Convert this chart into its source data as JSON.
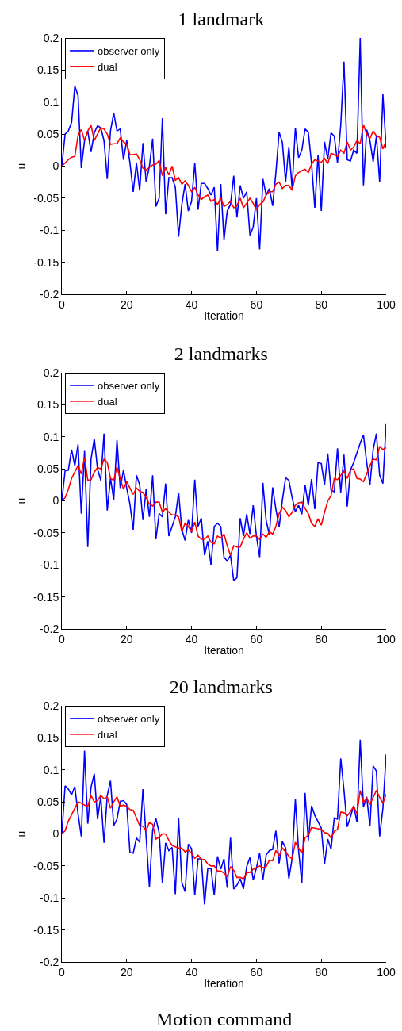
{
  "chart_data": [
    {
      "type": "line",
      "title": "1 landmark",
      "xlabel": "Iteration",
      "ylabel": "u",
      "xlim": [
        0,
        100
      ],
      "xticks": [
        0,
        20,
        40,
        60,
        80,
        100
      ],
      "ylim": [
        -0.2,
        0.2
      ],
      "yticks": [
        -0.2,
        -0.15,
        -0.1,
        -0.05,
        0,
        0.05,
        0.1,
        0.15,
        0.2
      ],
      "grid": false,
      "legend": "top left",
      "marker": "none",
      "line_style": "solid",
      "x": [
        0,
        1,
        2,
        3,
        4,
        5,
        6,
        7,
        8,
        9,
        10,
        11,
        12,
        13,
        14,
        15,
        16,
        17,
        18,
        19,
        20,
        21,
        22,
        23,
        24,
        25,
        26,
        27,
        28,
        29,
        30,
        31,
        32,
        33,
        34,
        35,
        36,
        37,
        38,
        39,
        40,
        41,
        42,
        43,
        44,
        45,
        46,
        47,
        48,
        49,
        50,
        51,
        52,
        53,
        54,
        55,
        56,
        57,
        58,
        59,
        60,
        61,
        62,
        63,
        64,
        65,
        66,
        67,
        68,
        69,
        70,
        71,
        72,
        73,
        74,
        75,
        76,
        77,
        78,
        79,
        80,
        81,
        82,
        83,
        84,
        85,
        86,
        87,
        88,
        89,
        90,
        91,
        92,
        93,
        94,
        95,
        96,
        97,
        98,
        99,
        100
      ],
      "series": [
        {
          "name": "observer only",
          "color": "#0000ff",
          "values": [
            0,
            0.05,
            0.055,
            0.068,
            0.125,
            0.11,
            -0.003,
            0.04,
            0.055,
            0.022,
            0.052,
            0.063,
            0.06,
            0.04,
            -0.02,
            0.055,
            0.083,
            0.055,
            0.058,
            0.01,
            0.04,
            0.005,
            -0.04,
            0.005,
            -0.038,
            0.036,
            -0.025,
            0,
            0.043,
            -0.063,
            -0.05,
            0.075,
            -0.075,
            -0.018,
            -0.018,
            -0.033,
            -0.11,
            -0.06,
            -0.028,
            -0.07,
            -0.055,
            0.005,
            -0.068,
            -0.027,
            -0.027,
            -0.035,
            -0.045,
            -0.033,
            -0.133,
            -0.028,
            -0.115,
            -0.07,
            -0.06,
            -0.015,
            -0.08,
            -0.03,
            -0.05,
            -0.04,
            -0.108,
            -0.095,
            -0.05,
            -0.13,
            -0.02,
            -0.045,
            -0.035,
            -0.062,
            -0.01,
            0.053,
            0.037,
            -0.025,
            0.03,
            -0.035,
            0.06,
            0.013,
            0.025,
            0.058,
            0.053,
            0.004,
            -0.065,
            0.018,
            -0.07,
            0.038,
            0.011,
            0.052,
            0.047,
            0.005,
            0.064,
            0.163,
            0.01,
            0.008,
            0.025,
            0.02,
            0.2,
            -0.03,
            0.057,
            0.04,
            0.007,
            0.047,
            -0.025,
            0.112,
            0.028
          ]
        },
        {
          "name": "dual",
          "color": "#ff0000",
          "values": [
            0,
            0.005,
            0.01,
            0.014,
            0.015,
            0.048,
            0.057,
            0.04,
            0.055,
            0.064,
            0.04,
            0.05,
            0.06,
            0.058,
            0.05,
            0.034,
            0.035,
            0.035,
            0.044,
            0.038,
            0.034,
            0.018,
            0.018,
            0.019,
            0.01,
            -0.003,
            -0.006,
            -0.002,
            0.002,
            0.003,
            0.009,
            -0.015,
            -0.002,
            -0.014,
            0,
            -0.022,
            -0.018,
            -0.028,
            -0.023,
            -0.03,
            -0.04,
            -0.033,
            -0.045,
            -0.052,
            -0.048,
            -0.045,
            -0.055,
            -0.052,
            -0.06,
            -0.05,
            -0.063,
            -0.06,
            -0.055,
            -0.065,
            -0.062,
            -0.05,
            -0.065,
            -0.058,
            -0.05,
            -0.058,
            -0.068,
            -0.06,
            -0.056,
            -0.045,
            -0.04,
            -0.04,
            -0.028,
            -0.025,
            -0.035,
            -0.03,
            -0.03,
            -0.038,
            -0.015,
            -0.01,
            -0.007,
            -0.005,
            -0.01,
            0.003,
            0.01,
            0.008,
            0.006,
            0.012,
            0.004,
            0.02,
            0.018,
            0.015,
            0.025,
            0.02,
            0.038,
            0.025,
            0.03,
            0.04,
            0.035,
            0.065,
            0.05,
            0.043,
            0.055,
            0.047,
            0.045,
            0.027,
            0.04
          ]
        }
      ]
    },
    {
      "type": "line",
      "title": "2 landmarks",
      "xlabel": "Iteration",
      "ylabel": "u",
      "xlim": [
        0,
        100
      ],
      "xticks": [
        0,
        20,
        40,
        60,
        80,
        100
      ],
      "ylim": [
        -0.2,
        0.2
      ],
      "yticks": [
        -0.2,
        -0.15,
        -0.1,
        -0.05,
        0,
        0.05,
        0.1,
        0.15,
        0.2
      ],
      "grid": false,
      "legend": "top left",
      "marker": "none",
      "line_style": "solid",
      "x": [
        0,
        1,
        2,
        3,
        4,
        5,
        6,
        7,
        8,
        9,
        10,
        11,
        12,
        13,
        14,
        15,
        16,
        17,
        18,
        19,
        20,
        21,
        22,
        23,
        24,
        25,
        26,
        27,
        28,
        29,
        30,
        31,
        32,
        33,
        34,
        35,
        36,
        37,
        38,
        39,
        40,
        41,
        42,
        43,
        44,
        45,
        46,
        47,
        48,
        49,
        50,
        51,
        52,
        53,
        54,
        55,
        56,
        57,
        58,
        59,
        60,
        61,
        62,
        63,
        64,
        65,
        66,
        67,
        68,
        69,
        70,
        71,
        72,
        73,
        74,
        75,
        76,
        77,
        78,
        79,
        80,
        81,
        82,
        83,
        84,
        85,
        86,
        87,
        88,
        89,
        90,
        91,
        92,
        93,
        94,
        95,
        96,
        97,
        98,
        99,
        100
      ],
      "series": [
        {
          "name": "observer only",
          "color": "#0000ff",
          "values": [
            0,
            0.047,
            0.048,
            0.08,
            0.055,
            0.088,
            -0.02,
            0.078,
            -0.072,
            0.065,
            0.097,
            0.05,
            0.032,
            0.105,
            -0.015,
            0.035,
            0.002,
            0.095,
            0.02,
            0.048,
            0.02,
            -0.005,
            -0.045,
            0.04,
            0.025,
            -0.03,
            0.018,
            -0.025,
            0.04,
            -0.06,
            -0.02,
            -0.025,
            0.027,
            -0.055,
            -0.04,
            -0.025,
            0.013,
            -0.045,
            -0.062,
            -0.03,
            -0.05,
            0.033,
            -0.04,
            -0.027,
            -0.085,
            -0.063,
            -0.1,
            -0.04,
            -0.035,
            -0.04,
            -0.088,
            -0.094,
            -0.085,
            -0.125,
            -0.12,
            -0.027,
            -0.055,
            -0.021,
            -0.052,
            -0.007,
            -0.055,
            -0.088,
            0.028,
            -0.031,
            -0.053,
            0.021,
            -0.013,
            -0.041,
            0.001,
            0.036,
            0.032,
            0.005,
            -0.017,
            -0.007,
            -0.021,
            0.025,
            -0.007,
            0.034,
            -0.013,
            0.06,
            0.058,
            0.025,
            0.074,
            0.017,
            0.014,
            0.082,
            0.013,
            0.072,
            -0.009,
            0.048,
            0.06,
            0.075,
            0.09,
            0.103,
            0.06,
            0.025,
            0.08,
            0.105,
            0.04,
            0.027,
            0.121
          ]
        },
        {
          "name": "dual",
          "color": "#ff0000",
          "values": [
            0,
            0.005,
            0.018,
            0.035,
            0.045,
            0.055,
            0.042,
            0.068,
            0.032,
            0.033,
            0.045,
            0.052,
            0.05,
            0.065,
            0.06,
            0.035,
            0.032,
            0.053,
            0.035,
            0.018,
            0.03,
            0.02,
            0.01,
            0.02,
            0.015,
            0.013,
            0.005,
            -0.005,
            -0.008,
            -0.002,
            -0.002,
            -0.018,
            -0.012,
            -0.018,
            -0.022,
            -0.022,
            -0.025,
            -0.048,
            -0.035,
            -0.04,
            -0.048,
            -0.033,
            -0.055,
            -0.06,
            -0.06,
            -0.055,
            -0.065,
            -0.067,
            -0.055,
            -0.058,
            -0.052,
            -0.07,
            -0.085,
            -0.07,
            -0.072,
            -0.072,
            -0.06,
            -0.05,
            -0.058,
            -0.055,
            -0.055,
            -0.06,
            -0.052,
            -0.057,
            -0.048,
            -0.052,
            -0.04,
            -0.02,
            -0.01,
            -0.015,
            -0.025,
            -0.018,
            -0.007,
            -0.003,
            -0.002,
            -0.012,
            -0.02,
            -0.035,
            -0.04,
            -0.028,
            -0.038,
            -0.018,
            0,
            0.008,
            0.035,
            0.033,
            0.04,
            0.047,
            0.035,
            0.048,
            0.05,
            0.035,
            0.034,
            0.03,
            0.042,
            0.055,
            0.065,
            0.064,
            0.085,
            0.08,
            0.083
          ]
        }
      ]
    },
    {
      "type": "line",
      "title": "20 landmarks",
      "xlabel": "Iteration",
      "ylabel": "u",
      "xlim": [
        0,
        100
      ],
      "xticks": [
        0,
        20,
        40,
        60,
        80,
        100
      ],
      "ylim": [
        -0.2,
        0.2
      ],
      "yticks": [
        -0.2,
        -0.15,
        -0.1,
        -0.05,
        0,
        0.05,
        0.1,
        0.15,
        0.2
      ],
      "grid": false,
      "legend": "top left",
      "marker": "none",
      "line_style": "solid",
      "annotations": [
        "Motion command"
      ],
      "x": [
        0,
        1,
        2,
        3,
        4,
        5,
        6,
        7,
        8,
        9,
        10,
        11,
        12,
        13,
        14,
        15,
        16,
        17,
        18,
        19,
        20,
        21,
        22,
        23,
        24,
        25,
        26,
        27,
        28,
        29,
        30,
        31,
        32,
        33,
        34,
        35,
        36,
        37,
        38,
        39,
        40,
        41,
        42,
        43,
        44,
        45,
        46,
        47,
        48,
        49,
        50,
        51,
        52,
        53,
        54,
        55,
        56,
        57,
        58,
        59,
        60,
        61,
        62,
        63,
        64,
        65,
        66,
        67,
        68,
        69,
        70,
        71,
        72,
        73,
        74,
        75,
        76,
        77,
        78,
        79,
        80,
        81,
        82,
        83,
        84,
        85,
        86,
        87,
        88,
        89,
        90,
        91,
        92,
        93,
        94,
        95,
        96,
        97,
        98,
        99,
        100
      ],
      "series": [
        {
          "name": "observer only",
          "color": "#0000ff",
          "values": [
            0,
            0.075,
            0.07,
            0.061,
            0.074,
            0.031,
            -0.004,
            0.13,
            0.016,
            0.073,
            0.094,
            0.023,
            0.058,
            -0.014,
            0.06,
            0.083,
            0.013,
            0.023,
            0.051,
            0.052,
            0.046,
            -0.029,
            -0.03,
            -0.006,
            -0.013,
            0.07,
            -0.006,
            -0.083,
            0.006,
            0.024,
            0.002,
            -0.077,
            -0.014,
            -0.026,
            -0.021,
            -0.094,
            0.025,
            -0.076,
            -0.09,
            -0.016,
            -0.023,
            -0.096,
            -0.039,
            -0.039,
            -0.11,
            -0.054,
            -0.054,
            -0.096,
            -0.035,
            -0.055,
            -0.039,
            -0.084,
            -0.006,
            -0.086,
            -0.08,
            -0.07,
            -0.086,
            -0.051,
            -0.037,
            -0.072,
            -0.053,
            -0.03,
            -0.072,
            -0.033,
            -0.026,
            -0.024,
            0.005,
            -0.046,
            -0.012,
            -0.022,
            -0.07,
            -0.039,
            0.054,
            -0.026,
            -0.077,
            0.064,
            -0.01,
            0.044,
            0.029,
            0.019,
            0.009,
            -0.047,
            -0.008,
            -0.024,
            0.025,
            0.023,
            0.118,
            0.068,
            0.011,
            0.027,
            0.044,
            0.018,
            0.147,
            0.042,
            0.058,
            0.012,
            0.106,
            0.098,
            -0.004,
            0.04,
            0.124
          ]
        },
        {
          "name": "dual",
          "color": "#ff0000",
          "values": [
            0,
            0.005,
            0.02,
            0.03,
            0.04,
            0.05,
            0.048,
            0.045,
            0.043,
            0.06,
            0.05,
            0.052,
            0.06,
            0.055,
            0.058,
            0.04,
            0.05,
            0.058,
            0.043,
            0.045,
            0.043,
            0.038,
            0.037,
            0.025,
            0.013,
            0.012,
            0.005,
            0.018,
            0.015,
            -0.008,
            -0.005,
            0,
            0,
            -0.01,
            -0.018,
            -0.02,
            -0.022,
            -0.022,
            -0.028,
            -0.025,
            -0.03,
            -0.038,
            -0.033,
            -0.04,
            -0.04,
            -0.047,
            -0.05,
            -0.05,
            -0.058,
            -0.058,
            -0.061,
            -0.067,
            -0.051,
            -0.057,
            -0.068,
            -0.068,
            -0.07,
            -0.061,
            -0.06,
            -0.055,
            -0.053,
            -0.05,
            -0.053,
            -0.051,
            -0.041,
            -0.042,
            -0.026,
            -0.034,
            -0.022,
            -0.028,
            -0.035,
            -0.039,
            -0.013,
            -0.022,
            -0.03,
            -0.006,
            -0.002,
            0.01,
            0.009,
            0.008,
            0.007,
            0.002,
            0.001,
            -0.006,
            0.004,
            0.007,
            0.034,
            0.033,
            0.028,
            0.035,
            0.043,
            0.032,
            0.068,
            0.049,
            0.056,
            0.046,
            0.057,
            0.068,
            0.057,
            0.048,
            0.062
          ]
        }
      ]
    }
  ]
}
